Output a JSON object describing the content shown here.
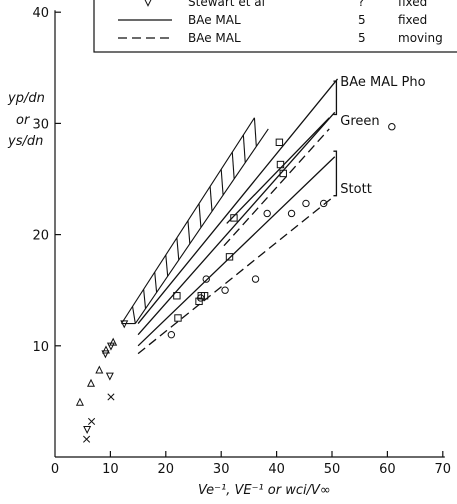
{
  "chart_data": {
    "type": "scatter",
    "xlim": [
      0,
      70
    ],
    "ylim": [
      0,
      40
    ],
    "x_ticks": [
      "0",
      "10",
      "20",
      "30",
      "40",
      "50",
      "60",
      "70"
    ],
    "y_ticks": [
      "10",
      "20",
      "30",
      "40"
    ],
    "ylabel_lines": [
      "yp/dn",
      "or",
      "ys/dn"
    ],
    "xlabel": "Ve⁻¹, VE⁻¹ or wci/V∞",
    "legend": [
      {
        "marker": "triangle-down",
        "source": "Stewart et al",
        "value": "?",
        "condition": "fixed"
      },
      {
        "marker": "solid-line",
        "source": "BAe MAL",
        "value": "5",
        "condition": "fixed"
      },
      {
        "marker": "dashed-line",
        "source": "BAe MAL",
        "value": "5",
        "condition": "moving"
      }
    ],
    "annotations": [
      {
        "text": "BAe MAL Pho",
        "x": 51.5,
        "y": 33.8
      },
      {
        "text": "Green",
        "x": 51.5,
        "y": 30.3
      },
      {
        "text": "Stott",
        "x": 51.5,
        "y": 24.2
      }
    ],
    "series": [
      {
        "marker": "triangle-up",
        "x": [
          4.5,
          6.5,
          8,
          9.2,
          10.5
        ],
        "y": [
          4.9,
          6.6,
          7.8,
          9.6,
          10.3
        ]
      },
      {
        "marker": "triangle-down",
        "x": [
          5.8,
          9.1,
          9.9,
          10.1,
          12.5
        ],
        "y": [
          2.5,
          9.3,
          7.3,
          10,
          12
        ]
      },
      {
        "marker": "x",
        "x": [
          5.7,
          6.6,
          10.1
        ],
        "y": [
          1.6,
          3.2,
          5.4
        ]
      },
      {
        "marker": "square",
        "x": [
          22,
          22.2,
          26,
          26.4,
          27,
          31.5,
          32.3,
          40.5,
          40.7,
          41.2
        ],
        "y": [
          14.5,
          12.5,
          14,
          14.5,
          14.5,
          18,
          21.5,
          28.3,
          26.3,
          25.5
        ]
      },
      {
        "marker": "circle",
        "x": [
          21,
          26.3,
          27.3,
          30.7,
          36.2,
          38.3,
          42.7,
          45.3,
          48.5,
          60.8
        ],
        "y": [
          11,
          14.3,
          16,
          15,
          16,
          21.9,
          21.9,
          22.8,
          22.8,
          29.7
        ]
      }
    ],
    "solid_lines": [
      {
        "from": [
          15,
          12
        ],
        "to": [
          51,
          34
        ]
      },
      {
        "from": [
          15,
          11
        ],
        "to": [
          50.5,
          31
        ]
      },
      {
        "from": [
          31,
          21
        ],
        "to": [
          49.5,
          30.5
        ]
      },
      {
        "from": [
          15,
          10
        ],
        "to": [
          50.5,
          27
        ]
      }
    ],
    "dashed_lines": [
      {
        "from": [
          30.5,
          19
        ],
        "to": [
          49.5,
          29.5
        ]
      },
      {
        "from": [
          15,
          9.3
        ],
        "to": [
          50.5,
          23.5
        ]
      }
    ],
    "hatched_band": [
      [
        12,
        12
      ],
      [
        14.5,
        12
      ],
      [
        38.5,
        29.5
      ],
      [
        36,
        30.5
      ]
    ]
  }
}
